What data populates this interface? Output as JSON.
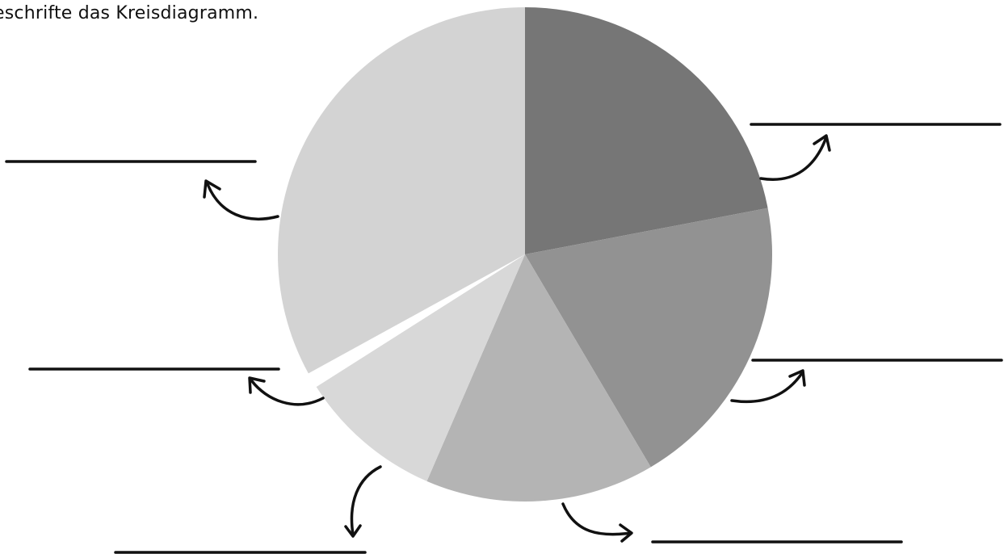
{
  "instruction": "eschrifte das Kreisdiagramm.",
  "chart_data": {
    "type": "pie",
    "title": "",
    "start_angle_deg": 0,
    "direction": "clockwise",
    "values": [
      22.0,
      19.5,
      15.0,
      9.5,
      1.0,
      33.0
    ],
    "colors": [
      "#767676",
      "#929292",
      "#b4b4b4",
      "#d8d8d8",
      "#ffffff",
      "#d3d3d3"
    ],
    "labels": [
      "",
      "",
      "",
      "",
      "",
      ""
    ],
    "answer_lines": 6
  }
}
